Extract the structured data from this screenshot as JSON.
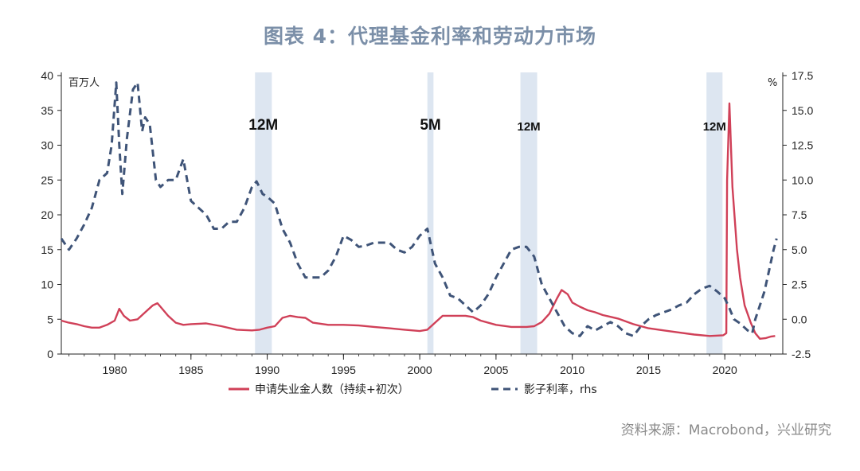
{
  "page": {
    "title": "图表 4：代理基金利率和劳动力市场",
    "source": "资料来源：Macrobond，兴业研究"
  },
  "chart_data": {
    "type": "line",
    "title": "图表 4：代理基金利率和劳动力市场",
    "y_left": {
      "unit_label": "百万人",
      "lim": [
        0,
        40
      ],
      "ticks": [
        0,
        5,
        10,
        15,
        20,
        25,
        30,
        35,
        40
      ]
    },
    "y_right": {
      "unit_label": "%",
      "lim": [
        -2.5,
        17.5
      ],
      "ticks": [
        "-2.5",
        "0.0",
        "2.5",
        "5.0",
        "7.5",
        "10.0",
        "12.5",
        "15.0",
        "17.5"
      ]
    },
    "x": {
      "lim": [
        1976.5,
        2023.8
      ],
      "ticks": [
        1980,
        1985,
        1990,
        1995,
        2000,
        2005,
        2010,
        2015,
        2020
      ]
    },
    "grid": false,
    "legend_position": "bottom",
    "recessions": [
      {
        "start": 1989.2,
        "end": 1990.3,
        "label": "12M",
        "label_size": "large"
      },
      {
        "start": 2000.5,
        "end": 2000.9,
        "label": "5M",
        "label_size": "large"
      },
      {
        "start": 2006.6,
        "end": 2007.7,
        "label": "12M",
        "label_size": "small"
      },
      {
        "start": 2018.8,
        "end": 2019.85,
        "label": "12M",
        "label_size": "small"
      }
    ],
    "series": [
      {
        "name": "申请失业金人数（持续+初次）",
        "axis": "left",
        "color": "#d04058",
        "style": "solid",
        "points": [
          [
            1976.5,
            4.8
          ],
          [
            1977.0,
            4.5
          ],
          [
            1977.5,
            4.3
          ],
          [
            1978.0,
            4.0
          ],
          [
            1978.5,
            3.8
          ],
          [
            1979.0,
            3.8
          ],
          [
            1979.5,
            4.2
          ],
          [
            1980.0,
            4.8
          ],
          [
            1980.3,
            6.5
          ],
          [
            1980.6,
            5.5
          ],
          [
            1981.0,
            4.8
          ],
          [
            1981.5,
            5.0
          ],
          [
            1982.0,
            6.0
          ],
          [
            1982.5,
            7.0
          ],
          [
            1982.8,
            7.3
          ],
          [
            1983.0,
            6.8
          ],
          [
            1983.5,
            5.5
          ],
          [
            1984.0,
            4.5
          ],
          [
            1984.5,
            4.2
          ],
          [
            1985.0,
            4.3
          ],
          [
            1986.0,
            4.4
          ],
          [
            1987.0,
            4.0
          ],
          [
            1988.0,
            3.5
          ],
          [
            1989.0,
            3.4
          ],
          [
            1989.5,
            3.5
          ],
          [
            1990.0,
            3.8
          ],
          [
            1990.5,
            4.0
          ],
          [
            1991.0,
            5.2
          ],
          [
            1991.5,
            5.5
          ],
          [
            1992.0,
            5.3
          ],
          [
            1992.5,
            5.2
          ],
          [
            1993.0,
            4.5
          ],
          [
            1994.0,
            4.2
          ],
          [
            1995.0,
            4.2
          ],
          [
            1996.0,
            4.1
          ],
          [
            1997.0,
            3.9
          ],
          [
            1998.0,
            3.7
          ],
          [
            1999.0,
            3.5
          ],
          [
            2000.0,
            3.3
          ],
          [
            2000.5,
            3.5
          ],
          [
            2001.0,
            4.5
          ],
          [
            2001.5,
            5.5
          ],
          [
            2002.0,
            5.5
          ],
          [
            2003.0,
            5.5
          ],
          [
            2003.5,
            5.3
          ],
          [
            2004.0,
            4.8
          ],
          [
            2005.0,
            4.2
          ],
          [
            2006.0,
            3.9
          ],
          [
            2007.0,
            3.9
          ],
          [
            2007.5,
            4.0
          ],
          [
            2008.0,
            4.6
          ],
          [
            2008.5,
            5.8
          ],
          [
            2009.0,
            8.0
          ],
          [
            2009.3,
            9.2
          ],
          [
            2009.7,
            8.6
          ],
          [
            2010.0,
            7.4
          ],
          [
            2010.5,
            6.8
          ],
          [
            2011.0,
            6.3
          ],
          [
            2011.5,
            6.0
          ],
          [
            2012.0,
            5.6
          ],
          [
            2013.0,
            5.1
          ],
          [
            2014.0,
            4.3
          ],
          [
            2015.0,
            3.7
          ],
          [
            2016.0,
            3.4
          ],
          [
            2017.0,
            3.1
          ],
          [
            2018.0,
            2.8
          ],
          [
            2019.0,
            2.6
          ],
          [
            2019.9,
            2.7
          ],
          [
            2020.1,
            3.0
          ],
          [
            2020.15,
            25.0
          ],
          [
            2020.3,
            36.0
          ],
          [
            2020.5,
            24.0
          ],
          [
            2020.8,
            15.0
          ],
          [
            2021.0,
            11.0
          ],
          [
            2021.3,
            7.0
          ],
          [
            2021.7,
            4.5
          ],
          [
            2022.0,
            3.0
          ],
          [
            2022.3,
            2.2
          ],
          [
            2022.7,
            2.3
          ],
          [
            2023.0,
            2.5
          ],
          [
            2023.3,
            2.6
          ]
        ]
      },
      {
        "name": "影子利率，rhs",
        "axis": "right",
        "color": "#3f5478",
        "style": "dashed",
        "points": [
          [
            1976.5,
            5.8
          ],
          [
            1977.0,
            5.0
          ],
          [
            1977.5,
            5.8
          ],
          [
            1978.0,
            6.8
          ],
          [
            1978.5,
            8.0
          ],
          [
            1979.0,
            10.0
          ],
          [
            1979.5,
            10.5
          ],
          [
            1979.8,
            12.5
          ],
          [
            1980.1,
            17.0
          ],
          [
            1980.3,
            12.5
          ],
          [
            1980.5,
            9.0
          ],
          [
            1980.8,
            13.0
          ],
          [
            1981.2,
            16.5
          ],
          [
            1981.5,
            17.0
          ],
          [
            1981.8,
            13.5
          ],
          [
            1982.0,
            14.5
          ],
          [
            1982.3,
            14.0
          ],
          [
            1982.7,
            10.0
          ],
          [
            1983.0,
            9.5
          ],
          [
            1983.5,
            10.0
          ],
          [
            1984.0,
            10.0
          ],
          [
            1984.5,
            11.5
          ],
          [
            1985.0,
            8.5
          ],
          [
            1985.5,
            8.0
          ],
          [
            1986.0,
            7.5
          ],
          [
            1986.5,
            6.5
          ],
          [
            1987.0,
            6.5
          ],
          [
            1987.5,
            7.0
          ],
          [
            1988.0,
            7.0
          ],
          [
            1988.5,
            8.0
          ],
          [
            1989.0,
            9.5
          ],
          [
            1989.3,
            9.9
          ],
          [
            1989.7,
            9.0
          ],
          [
            1990.0,
            8.8
          ],
          [
            1990.5,
            8.3
          ],
          [
            1991.0,
            6.5
          ],
          [
            1991.5,
            5.5
          ],
          [
            1992.0,
            4.0
          ],
          [
            1992.5,
            3.0
          ],
          [
            1993.0,
            3.0
          ],
          [
            1993.5,
            3.0
          ],
          [
            1994.0,
            3.5
          ],
          [
            1994.5,
            4.5
          ],
          [
            1995.0,
            6.0
          ],
          [
            1995.5,
            5.7
          ],
          [
            1996.0,
            5.2
          ],
          [
            1996.5,
            5.3
          ],
          [
            1997.0,
            5.5
          ],
          [
            1997.5,
            5.5
          ],
          [
            1998.0,
            5.5
          ],
          [
            1998.5,
            5.0
          ],
          [
            1999.0,
            4.8
          ],
          [
            1999.5,
            5.2
          ],
          [
            2000.0,
            6.0
          ],
          [
            2000.5,
            6.5
          ],
          [
            2001.0,
            4.0
          ],
          [
            2001.5,
            3.0
          ],
          [
            2002.0,
            1.7
          ],
          [
            2002.5,
            1.5
          ],
          [
            2003.0,
            1.0
          ],
          [
            2003.5,
            0.5
          ],
          [
            2004.0,
            1.0
          ],
          [
            2004.5,
            1.8
          ],
          [
            2005.0,
            3.0
          ],
          [
            2005.5,
            4.0
          ],
          [
            2006.0,
            5.0
          ],
          [
            2006.5,
            5.2
          ],
          [
            2007.0,
            5.2
          ],
          [
            2007.5,
            4.5
          ],
          [
            2008.0,
            2.5
          ],
          [
            2008.5,
            1.5
          ],
          [
            2009.0,
            0.5
          ],
          [
            2009.5,
            -0.5
          ],
          [
            2010.0,
            -1.0
          ],
          [
            2010.5,
            -1.2
          ],
          [
            2011.0,
            -0.5
          ],
          [
            2011.5,
            -0.8
          ],
          [
            2012.0,
            -0.5
          ],
          [
            2012.5,
            -0.2
          ],
          [
            2013.0,
            -0.5
          ],
          [
            2013.5,
            -1.0
          ],
          [
            2014.0,
            -1.2
          ],
          [
            2014.5,
            -0.5
          ],
          [
            2015.0,
            0.0
          ],
          [
            2015.5,
            0.3
          ],
          [
            2016.0,
            0.5
          ],
          [
            2016.5,
            0.7
          ],
          [
            2017.0,
            1.0
          ],
          [
            2017.5,
            1.2
          ],
          [
            2018.0,
            1.8
          ],
          [
            2018.5,
            2.2
          ],
          [
            2019.0,
            2.4
          ],
          [
            2019.5,
            2.0
          ],
          [
            2020.0,
            1.5
          ],
          [
            2020.3,
            0.8
          ],
          [
            2020.6,
            0.0
          ],
          [
            2021.0,
            -0.3
          ],
          [
            2021.5,
            -0.8
          ],
          [
            2021.8,
            -1.0
          ],
          [
            2022.0,
            0.0
          ],
          [
            2022.3,
            1.0
          ],
          [
            2022.6,
            2.0
          ],
          [
            2022.9,
            3.5
          ],
          [
            2023.2,
            5.0
          ],
          [
            2023.4,
            5.8
          ]
        ]
      }
    ]
  }
}
